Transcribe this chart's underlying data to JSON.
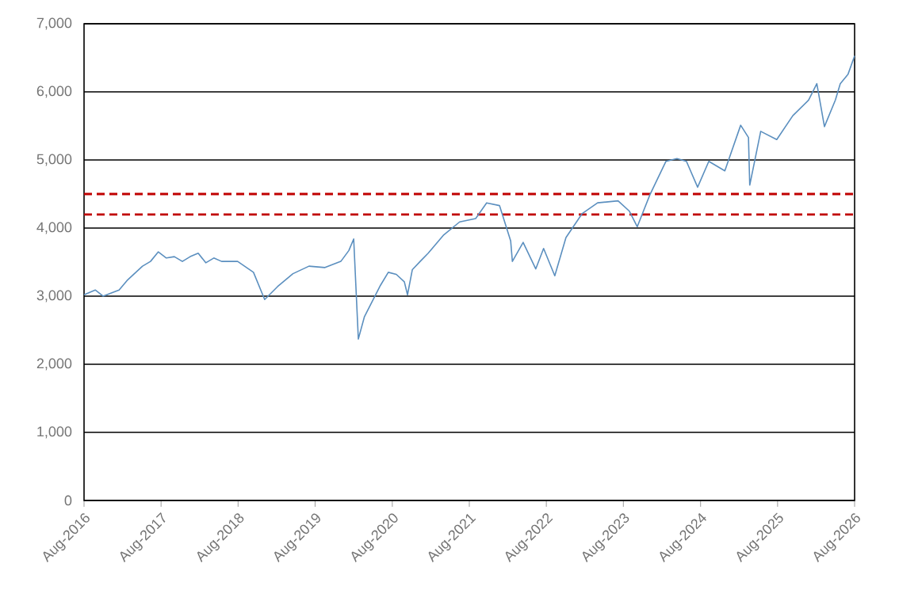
{
  "chart_data": {
    "type": "line",
    "x": [
      "2016-08-01",
      "2016-09-23",
      "2016-10-30",
      "2017-01-14",
      "2017-02-21",
      "2017-05-05",
      "2017-06-12",
      "2017-07-19",
      "2017-08-26",
      "2017-10-03",
      "2017-11-10",
      "2017-12-17",
      "2018-01-24",
      "2018-03-01",
      "2018-04-08",
      "2018-05-15",
      "2018-07-30",
      "2018-10-13",
      "2018-12-05",
      "2019-02-04",
      "2019-04-18",
      "2019-07-03",
      "2019-09-17",
      "2019-12-01",
      "2020-01-08",
      "2020-01-31",
      "2020-02-22",
      "2020-03-22",
      "2020-04-29",
      "2020-06-06",
      "2020-07-13",
      "2020-08-20",
      "2020-09-27",
      "2020-10-12",
      "2020-11-04",
      "2020-12-11",
      "2021-01-18",
      "2021-04-02",
      "2021-06-16",
      "2021-08-31",
      "2021-10-22",
      "2021-12-22",
      "2022-02-13",
      "2022-02-21",
      "2022-04-13",
      "2022-06-12",
      "2022-07-19",
      "2022-09-10",
      "2022-11-02",
      "2023-01-17",
      "2023-04-01",
      "2023-07-07",
      "2023-08-29",
      "2023-10-06",
      "2023-12-05",
      "2024-02-19",
      "2024-04-11",
      "2024-05-26",
      "2024-07-18",
      "2024-09-09",
      "2024-11-24",
      "2025-02-07",
      "2025-03-16",
      "2025-03-22",
      "2025-05-13",
      "2025-07-28",
      "2025-10-12",
      "2025-12-26",
      "2026-02-03",
      "2026-03-11",
      "2026-05-02",
      "2026-05-25",
      "2026-07-01",
      "2026-08-01"
    ],
    "series": [
      {
        "color": "#5b8fbf",
        "values": [
          3020,
          3090,
          3000,
          3090,
          3230,
          3440,
          3510,
          3650,
          3560,
          3580,
          3510,
          3580,
          3630,
          3490,
          3560,
          3510,
          3510,
          3350,
          2950,
          3140,
          3330,
          3440,
          3420,
          3510,
          3670,
          3840,
          2370,
          2700,
          2930,
          3160,
          3350,
          3320,
          3210,
          3020,
          3390,
          3510,
          3630,
          3900,
          4090,
          4140,
          4370,
          4330,
          3810,
          3510,
          3790,
          3400,
          3700,
          3300,
          3860,
          4210,
          4370,
          4400,
          4250,
          4020,
          4490,
          4980,
          5020,
          4980,
          4600,
          4980,
          4840,
          5510,
          5330,
          4630,
          5420,
          5300,
          5650,
          5880,
          6120,
          5490,
          5880,
          6120,
          6260,
          6530
        ]
      }
    ],
    "xlim": [
      "2016-08-01",
      "2026-08-01"
    ],
    "xticks": [
      {
        "value": "2016-08-01",
        "label": "Aug-2016"
      },
      {
        "value": "2017-08-01",
        "label": "Aug-2017"
      },
      {
        "value": "2018-08-01",
        "label": "Aug-2018"
      },
      {
        "value": "2019-08-01",
        "label": "Aug-2019"
      },
      {
        "value": "2020-08-01",
        "label": "Aug-2020"
      },
      {
        "value": "2021-08-01",
        "label": "Aug-2021"
      },
      {
        "value": "2022-08-01",
        "label": "Aug-2022"
      },
      {
        "value": "2023-08-01",
        "label": "Aug-2023"
      },
      {
        "value": "2024-08-01",
        "label": "Aug-2024"
      },
      {
        "value": "2025-08-01",
        "label": "Aug-2025"
      },
      {
        "value": "2026-08-01",
        "label": "Aug-2026"
      }
    ],
    "ylim": [
      0,
      7000
    ],
    "yticks": [
      0,
      {
        "value": 1000,
        "label": "1,000"
      },
      {
        "value": 2000,
        "label": "2,000"
      },
      {
        "value": 3000,
        "label": "3,000"
      },
      {
        "value": 4000,
        "label": "4,000"
      },
      {
        "value": 5000,
        "label": "5,000"
      },
      {
        "value": 6000,
        "label": "6,000"
      },
      {
        "value": 7000,
        "label": "7,000"
      }
    ],
    "grid": "y",
    "line_style": "solid",
    "ref_lines": [
      {
        "axis": "y",
        "value": 4500,
        "color": "#c00000",
        "line_style": "dashed"
      },
      {
        "axis": "y",
        "value": 4200,
        "color": "#c00000",
        "line_style": "dashed"
      }
    ]
  }
}
